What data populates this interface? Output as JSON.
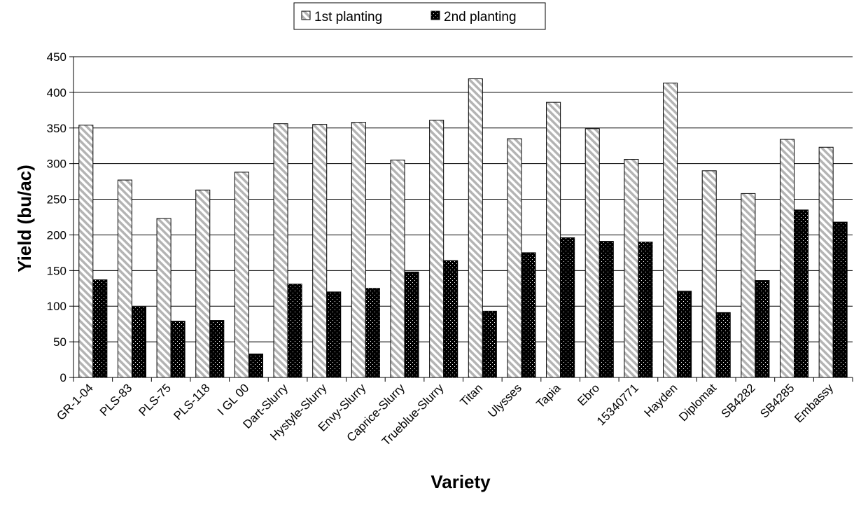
{
  "chart_data": {
    "type": "bar",
    "xlabel": "Variety",
    "ylabel": "Yield (bu/ac)",
    "ylim": [
      0,
      450
    ],
    "yticks": [
      0,
      50,
      100,
      150,
      200,
      250,
      300,
      350,
      400,
      450
    ],
    "grid": true,
    "legend_position": "top-center",
    "categories": [
      "GR-1-04",
      "PLS-83",
      "PLS-75",
      "PLS-118",
      "I GL 00",
      "Dart-Slurry",
      "Hystyle-Slurry",
      "Envy-Slurry",
      "Caprice-Slurry",
      "Trueblue-Slurry",
      "Titan",
      "Ulysses",
      "Tapia",
      "Ebro",
      "15340771",
      "Hayden",
      "Diplomat",
      "SB4282",
      "SB4285",
      "Embassy"
    ],
    "series": [
      {
        "name": "1st planting",
        "pattern": "diagonal-stripes",
        "color": "#c8c8c8",
        "values": [
          354,
          277,
          223,
          263,
          288,
          356,
          355,
          358,
          305,
          361,
          419,
          335,
          386,
          349,
          306,
          413,
          290,
          258,
          334,
          323
        ]
      },
      {
        "name": "2nd planting",
        "pattern": "dotted-black",
        "color": "#000000",
        "values": [
          137,
          99,
          79,
          80,
          33,
          131,
          120,
          125,
          148,
          164,
          93,
          175,
          196,
          191,
          190,
          121,
          91,
          136,
          235,
          218
        ]
      }
    ]
  }
}
